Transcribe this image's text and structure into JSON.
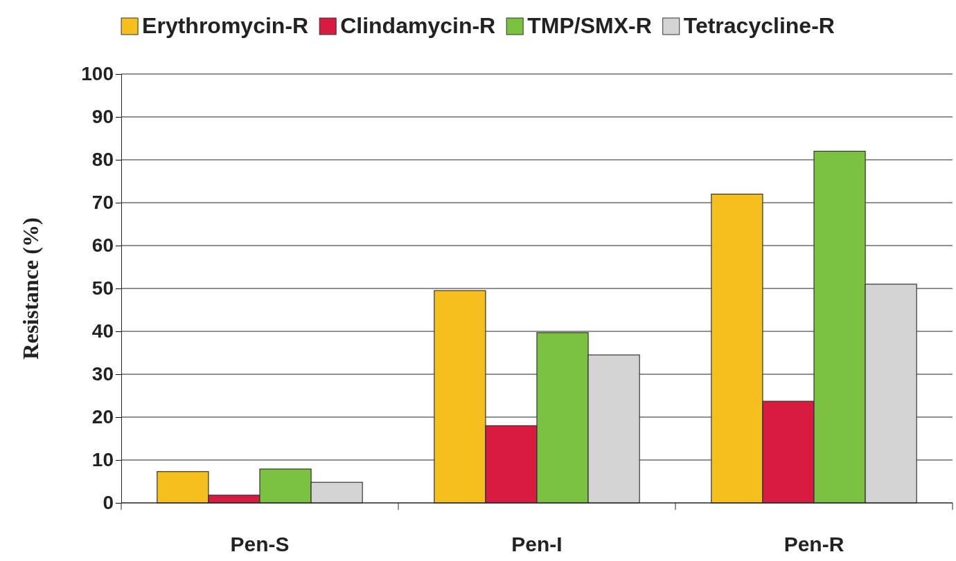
{
  "chart_data": {
    "type": "bar",
    "ylabel": "Resistance (%)",
    "categories": [
      "Pen-S",
      "Pen-I",
      "Pen-R"
    ],
    "series": [
      {
        "name": "Erythromycin-R",
        "color": "#f5c01e",
        "values": [
          7.3,
          49.5,
          72
        ]
      },
      {
        "name": "Clindamycin-R",
        "color": "#d81c3f",
        "values": [
          1.8,
          18,
          23.7
        ]
      },
      {
        "name": "TMP/SMX-R",
        "color": "#7cc242",
        "values": [
          7.9,
          39.7,
          82
        ]
      },
      {
        "name": "Tetracycline-R",
        "color": "#d4d4d4",
        "values": [
          4.8,
          34.5,
          51
        ]
      }
    ],
    "ylim": [
      0,
      100
    ],
    "yticks": [
      0,
      10,
      20,
      30,
      40,
      50,
      60,
      70,
      80,
      90,
      100
    ],
    "grid": "y",
    "legend": "top"
  }
}
